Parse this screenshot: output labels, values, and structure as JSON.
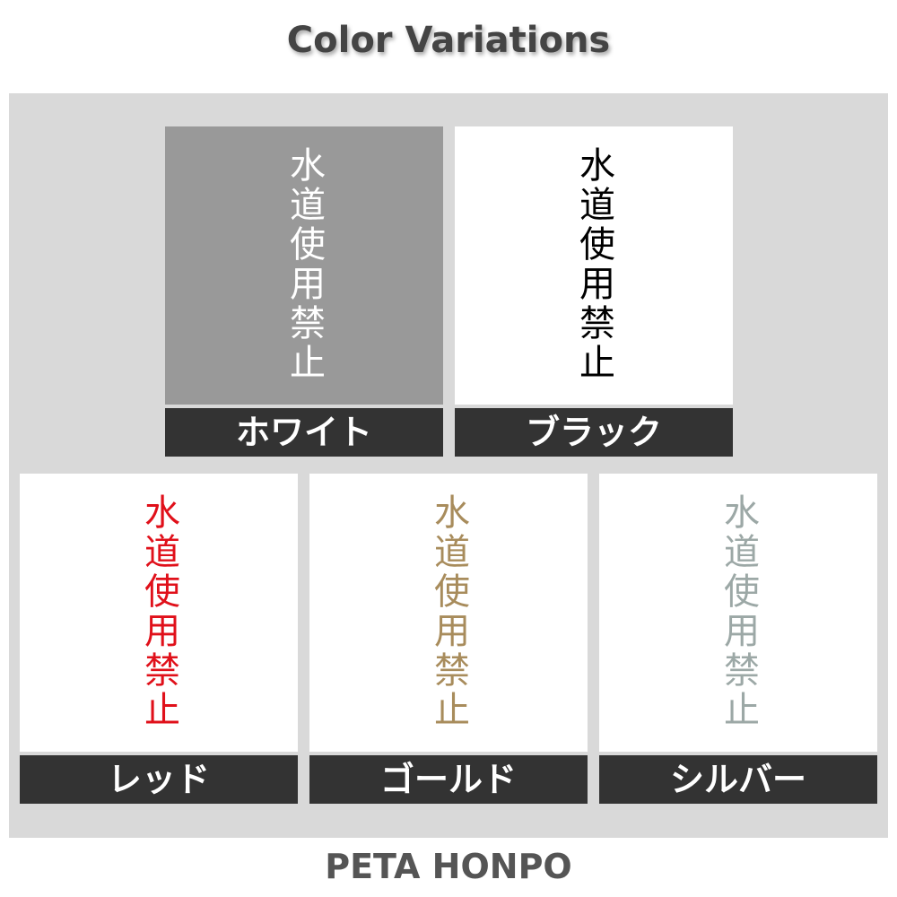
{
  "title": "Color Variations",
  "sign_text": "水道使用禁止",
  "variations": [
    {
      "label": "ホワイト",
      "text_color": "#ffffff",
      "background": "#999999"
    },
    {
      "label": "ブラック",
      "text_color": "#000000",
      "background": "#ffffff"
    },
    {
      "label": "レッド",
      "text_color": "#e0101a",
      "background": "#ffffff"
    },
    {
      "label": "ゴールド",
      "text_color": "#a88c5c",
      "background": "#ffffff"
    },
    {
      "label": "シルバー",
      "text_color": "#9ca8a6",
      "background": "#ffffff"
    }
  ],
  "footer": "PETA HONPO"
}
